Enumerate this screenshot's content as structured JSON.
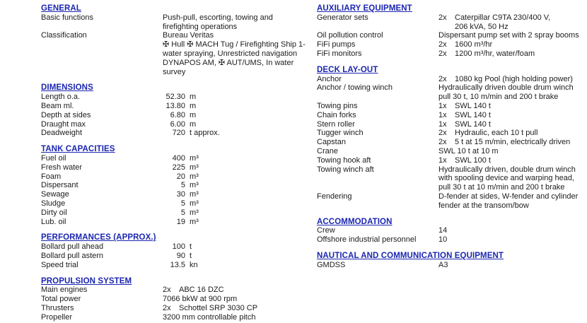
{
  "colors": {
    "heading_blue": "#1b26b0",
    "body_text": "#1c1c1c",
    "background": "#ffffff"
  },
  "columns": {
    "left": {
      "sections": [
        {
          "title": "GENERAL",
          "rows": [
            {
              "label": "Basic functions",
              "lines": [
                "Push-pull, escorting, towing and",
                "firefighting operations"
              ]
            },
            {
              "label": "Classification",
              "lines": [
                "Bureau Veritas",
                "✠ Hull ✠ MACH Tug / Firefighting Ship 1-",
                "water spraying, Unrestricted navigation",
                "DYNAPOS AM, ✠ AUT/UMS, In water",
                "survey"
              ]
            }
          ]
        },
        {
          "title": "DIMENSIONS",
          "rows": [
            {
              "label": "Length o.a.",
              "num": "52.30",
              "unit": "m"
            },
            {
              "label": "Beam ml.",
              "num": "13.80",
              "unit": "m"
            },
            {
              "label": "Depth at sides",
              "num": "6.80",
              "unit": "m"
            },
            {
              "label": "Draught max",
              "num": "6.00",
              "unit": "m"
            },
            {
              "label": "Deadweight",
              "num": "720",
              "unit": "t approx."
            }
          ]
        },
        {
          "title": "TANK CAPACITIES",
          "rows": [
            {
              "label": "Fuel oil",
              "num": "400",
              "unit": "m³"
            },
            {
              "label": "Fresh water",
              "num": "225",
              "unit": "m³"
            },
            {
              "label": "Foam",
              "num": "20",
              "unit": "m³"
            },
            {
              "label": "Dispersant",
              "num": "5",
              "unit": "m³"
            },
            {
              "label": "Sewage",
              "num": "30",
              "unit": "m³"
            },
            {
              "label": "Sludge",
              "num": "5",
              "unit": "m³"
            },
            {
              "label": "Dirty oil",
              "num": "5",
              "unit": "m³"
            },
            {
              "label": "Lub. oil",
              "num": "19",
              "unit": "m³"
            }
          ]
        },
        {
          "title": "PERFORMANCES (APPROX.)",
          "rows": [
            {
              "label": "Bollard pull ahead",
              "num": "100",
              "unit": "t"
            },
            {
              "label": "Bollard pull astern",
              "num": "90",
              "unit": "t"
            },
            {
              "label": "Speed trial",
              "num": "13.5",
              "unit": "kn"
            }
          ]
        },
        {
          "title": "PROPULSION SYSTEM",
          "rows": [
            {
              "label": "Main engines",
              "qty": "2x",
              "lines": [
                "ABC 16 DZC"
              ]
            },
            {
              "label": "Total power",
              "lines": [
                "7066 bkW at 900 rpm"
              ]
            },
            {
              "label": "Thrusters",
              "qty": "2x",
              "lines": [
                "Schottel SRP 3030 CP"
              ]
            },
            {
              "label": "Propeller",
              "lines": [
                "3200 mm controllable pitch"
              ]
            }
          ]
        }
      ]
    },
    "right": {
      "sections": [
        {
          "title": "AUXILIARY EQUIPMENT",
          "rows": [
            {
              "label": "Generator sets",
              "qty": "2x",
              "lines": [
                "Caterpillar C9TA 230/400 V,",
                "206 kVA, 50 Hz"
              ]
            },
            {
              "label": "Oil pollution control",
              "lines": [
                "Dispersant pump set with 2 spray booms"
              ]
            },
            {
              "label": "FiFi pumps",
              "qty": "2x",
              "lines": [
                "1600 m³/hr"
              ]
            },
            {
              "label": "FiFi monitors",
              "qty": "2x",
              "lines": [
                "1200 m³/hr, water/foam"
              ]
            }
          ]
        },
        {
          "title": "DECK LAY-OUT",
          "rows": [
            {
              "label": "Anchor",
              "qty": "2x",
              "lines": [
                "1080 kg Pool (high holding power)"
              ]
            },
            {
              "label": "Anchor / towing winch",
              "lines": [
                "Hydraulically driven double drum winch",
                "pull 30 t, 10 m/min and 200 t brake"
              ]
            },
            {
              "label": "Towing pins",
              "qty": "1x",
              "lines": [
                "SWL 140 t"
              ]
            },
            {
              "label": "Chain forks",
              "qty": "1x",
              "lines": [
                "SWL 140 t"
              ]
            },
            {
              "label": "Stern roller",
              "qty": "1x",
              "lines": [
                "SWL 140 t"
              ]
            },
            {
              "label": "Tugger winch",
              "qty": "2x",
              "lines": [
                "Hydraulic, each 10 t pull"
              ]
            },
            {
              "label": "Capstan",
              "qty": "2x",
              "lines": [
                "5 t at 15 m/min, electrically driven"
              ]
            },
            {
              "label": "Crane",
              "lines": [
                "SWL 10 t at 10 m"
              ]
            },
            {
              "label": "Towing hook aft",
              "qty": "1x",
              "lines": [
                "SWL 100 t"
              ]
            },
            {
              "label": "Towing winch aft",
              "lines": [
                "Hydraulically driven, double drum winch",
                "with spooling device and warping head,",
                "pull 30 t at 10 m/min and 200 t brake"
              ]
            },
            {
              "label": "Fendering",
              "lines": [
                "D-fender at sides, W-fender and cylinder",
                "fender at the transom/bow"
              ]
            }
          ]
        },
        {
          "title": "ACCOMMODATION",
          "rows": [
            {
              "label": "Crew",
              "lines": [
                "14"
              ]
            },
            {
              "label": "Offshore industrial personnel",
              "lines": [
                "10"
              ]
            }
          ]
        },
        {
          "title": "NAUTICAL AND COMMUNICATION EQUIPMENT",
          "rows": [
            {
              "label": "GMDSS",
              "lines": [
                "A3"
              ]
            }
          ]
        }
      ]
    }
  }
}
